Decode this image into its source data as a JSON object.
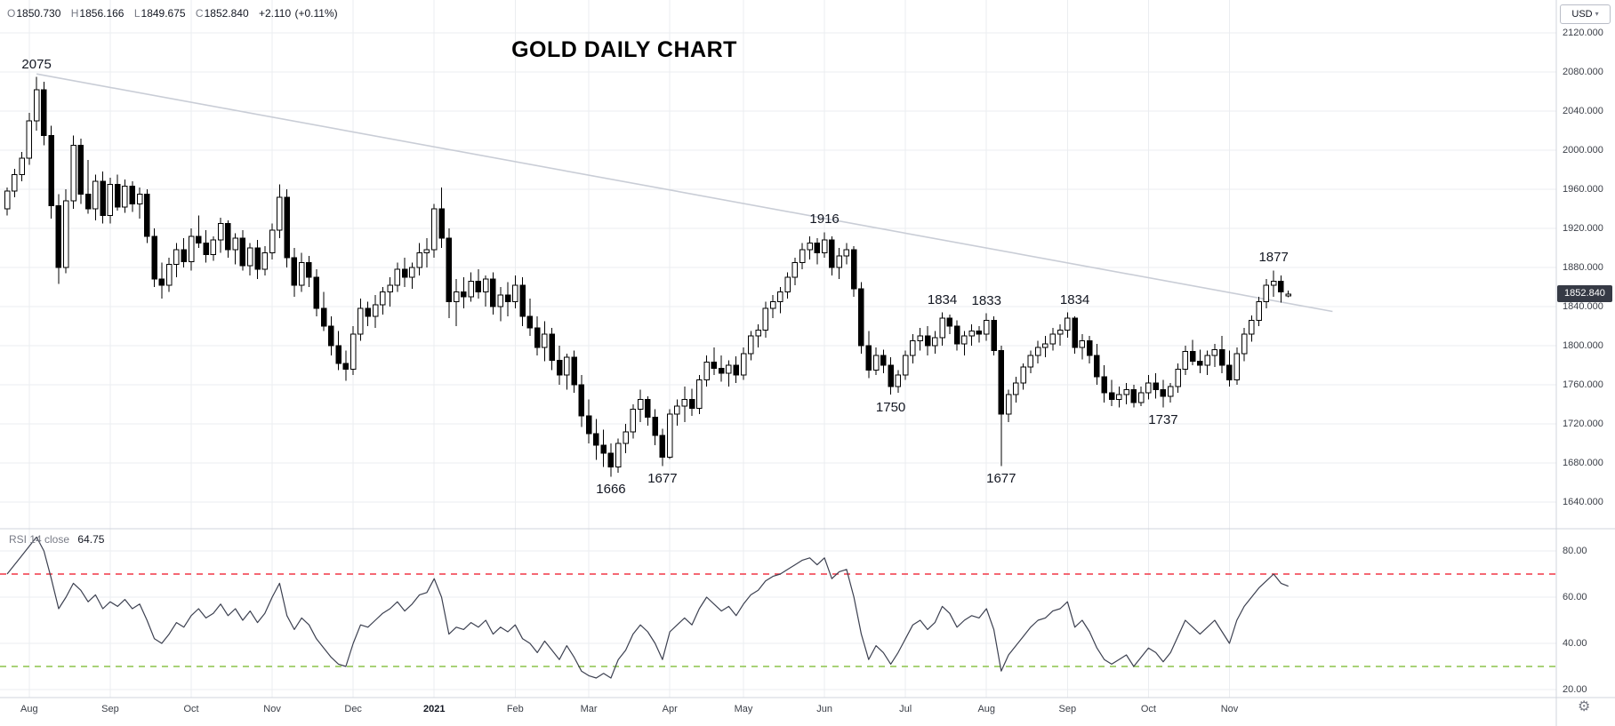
{
  "header": {
    "legend": {
      "open_label": "O",
      "open": "1850.730",
      "high_label": "H",
      "high": "1856.166",
      "low_label": "L",
      "low": "1849.675",
      "close_label": "C",
      "close": "1852.840",
      "change": "+2.110",
      "change_percent": "(+0.11%)"
    },
    "title": "GOLD DAILY CHART",
    "currency_selector": {
      "label": "USD"
    }
  },
  "icons": {
    "caret_down": "▾",
    "gear": "⚙"
  },
  "price_axis": {
    "ticks": [
      "2120.000",
      "2080.000",
      "2040.000",
      "2000.000",
      "1960.000",
      "1920.000",
      "1880.000",
      "1840.000",
      "1800.000",
      "1760.000",
      "1720.000",
      "1680.000",
      "1640.000"
    ],
    "last_price_badge": "1852.840"
  },
  "rsi_pane": {
    "indicator_label": "RSI 14 close",
    "value": "64.75",
    "ticks": [
      "80.00",
      "60.00",
      "40.00",
      "20.00"
    ]
  },
  "time_axis": {
    "labels": [
      {
        "text": "Aug",
        "index": 3
      },
      {
        "text": "Sep",
        "index": 14
      },
      {
        "text": "Oct",
        "index": 25
      },
      {
        "text": "Nov",
        "index": 36
      },
      {
        "text": "Dec",
        "index": 47
      },
      {
        "text": "2021",
        "index": 58,
        "bold": true
      },
      {
        "text": "Feb",
        "index": 69
      },
      {
        "text": "Mar",
        "index": 79
      },
      {
        "text": "Apr",
        "index": 90
      },
      {
        "text": "May",
        "index": 100
      },
      {
        "text": "Jun",
        "index": 111
      },
      {
        "text": "Jul",
        "index": 122
      },
      {
        "text": "Aug",
        "index": 133
      },
      {
        "text": "Sep",
        "index": 144
      },
      {
        "text": "Oct",
        "index": 155
      },
      {
        "text": "Nov",
        "index": 166
      }
    ]
  },
  "annotations": [
    {
      "text": "2075",
      "index": 4,
      "price": 2075,
      "placement": "above"
    },
    {
      "text": "1916",
      "index": 111,
      "price": 1916,
      "placement": "above"
    },
    {
      "text": "1877",
      "index": 172,
      "price": 1877,
      "placement": "above"
    },
    {
      "text": "1834",
      "index": 127,
      "price": 1834,
      "placement": "above"
    },
    {
      "text": "1833",
      "index": 133,
      "price": 1833,
      "placement": "above"
    },
    {
      "text": "1834",
      "index": 145,
      "price": 1834,
      "placement": "above"
    },
    {
      "text": "1750",
      "index": 120,
      "price": 1750,
      "placement": "below"
    },
    {
      "text": "1666",
      "index": 82,
      "price": 1666,
      "placement": "below"
    },
    {
      "text": "1677",
      "index": 89,
      "price": 1677,
      "placement": "below"
    },
    {
      "text": "1677",
      "index": 135,
      "price": 1677,
      "placement": "below"
    },
    {
      "text": "1737",
      "index": 157,
      "price": 1737,
      "placement": "below"
    }
  ],
  "chart_data": {
    "type": "candlestick",
    "title": "GOLD DAILY CHART",
    "currency": "USD",
    "candle_interval": "~2 trading days (approximation of the daily chart Aug 2020 - Nov 2021)",
    "price_range": [
      1620,
      2130
    ],
    "price_gridlines": [
      2120,
      2080,
      2040,
      2000,
      1960,
      1920,
      1880,
      1840,
      1800,
      1760,
      1720,
      1680,
      1640
    ],
    "last": {
      "open": 1850.73,
      "high": 1856.166,
      "low": 1849.675,
      "close": 1852.84,
      "change": 2.11,
      "change_percent": 0.11
    },
    "trendline": {
      "from_index": 4,
      "from_price": 2078,
      "to_index": 180,
      "to_price": 1835
    },
    "candles_ohlc": [
      [
        1940,
        1962,
        1933,
        1958
      ],
      [
        1958,
        1981,
        1952,
        1975
      ],
      [
        1975,
        1998,
        1968,
        1992
      ],
      [
        1992,
        2038,
        1985,
        2030
      ],
      [
        2030,
        2075,
        2020,
        2062
      ],
      [
        2062,
        2070,
        2005,
        2015
      ],
      [
        2015,
        2025,
        1930,
        1943
      ],
      [
        1943,
        1955,
        1863,
        1880
      ],
      [
        1880,
        1960,
        1874,
        1948
      ],
      [
        1948,
        2015,
        1940,
        2005
      ],
      [
        2005,
        2012,
        1945,
        1955
      ],
      [
        1955,
        1990,
        1935,
        1940
      ],
      [
        1940,
        1975,
        1928,
        1968
      ],
      [
        1968,
        1978,
        1925,
        1933
      ],
      [
        1933,
        1972,
        1925,
        1965
      ],
      [
        1965,
        1975,
        1938,
        1942
      ],
      [
        1942,
        1970,
        1936,
        1963
      ],
      [
        1963,
        1968,
        1937,
        1945
      ],
      [
        1945,
        1962,
        1930,
        1955
      ],
      [
        1955,
        1960,
        1905,
        1912
      ],
      [
        1912,
        1920,
        1860,
        1868
      ],
      [
        1868,
        1885,
        1848,
        1862
      ],
      [
        1862,
        1890,
        1855,
        1883
      ],
      [
        1883,
        1905,
        1870,
        1898
      ],
      [
        1898,
        1910,
        1880,
        1886
      ],
      [
        1886,
        1920,
        1877,
        1912
      ],
      [
        1912,
        1933,
        1900,
        1905
      ],
      [
        1905,
        1918,
        1885,
        1893
      ],
      [
        1893,
        1912,
        1887,
        1908
      ],
      [
        1908,
        1931,
        1895,
        1925
      ],
      [
        1925,
        1928,
        1890,
        1898
      ],
      [
        1898,
        1915,
        1883,
        1910
      ],
      [
        1910,
        1918,
        1877,
        1882
      ],
      [
        1882,
        1905,
        1872,
        1900
      ],
      [
        1900,
        1908,
        1868,
        1878
      ],
      [
        1878,
        1902,
        1872,
        1895
      ],
      [
        1895,
        1925,
        1888,
        1918
      ],
      [
        1918,
        1965,
        1910,
        1952
      ],
      [
        1952,
        1960,
        1880,
        1890
      ],
      [
        1890,
        1900,
        1850,
        1862
      ],
      [
        1862,
        1895,
        1855,
        1885
      ],
      [
        1885,
        1892,
        1860,
        1870
      ],
      [
        1870,
        1878,
        1830,
        1838
      ],
      [
        1838,
        1855,
        1815,
        1820
      ],
      [
        1820,
        1830,
        1790,
        1800
      ],
      [
        1800,
        1815,
        1775,
        1782
      ],
      [
        1782,
        1795,
        1764,
        1776
      ],
      [
        1776,
        1820,
        1770,
        1812
      ],
      [
        1812,
        1848,
        1805,
        1838
      ],
      [
        1838,
        1845,
        1820,
        1830
      ],
      [
        1830,
        1852,
        1818,
        1842
      ],
      [
        1842,
        1860,
        1832,
        1855
      ],
      [
        1855,
        1870,
        1840,
        1862
      ],
      [
        1862,
        1885,
        1855,
        1878
      ],
      [
        1878,
        1890,
        1860,
        1870
      ],
      [
        1870,
        1885,
        1858,
        1880
      ],
      [
        1880,
        1905,
        1872,
        1895
      ],
      [
        1895,
        1910,
        1880,
        1898
      ],
      [
        1898,
        1945,
        1890,
        1940
      ],
      [
        1940,
        1962,
        1900,
        1910
      ],
      [
        1910,
        1920,
        1828,
        1845
      ],
      [
        1845,
        1868,
        1820,
        1855
      ],
      [
        1855,
        1870,
        1838,
        1850
      ],
      [
        1850,
        1875,
        1845,
        1866
      ],
      [
        1866,
        1878,
        1848,
        1855
      ],
      [
        1855,
        1872,
        1840,
        1868
      ],
      [
        1868,
        1875,
        1832,
        1840
      ],
      [
        1840,
        1860,
        1825,
        1852
      ],
      [
        1852,
        1865,
        1830,
        1845
      ],
      [
        1845,
        1872,
        1838,
        1862
      ],
      [
        1862,
        1870,
        1820,
        1830
      ],
      [
        1830,
        1848,
        1810,
        1818
      ],
      [
        1818,
        1830,
        1790,
        1798
      ],
      [
        1798,
        1825,
        1784,
        1812
      ],
      [
        1812,
        1818,
        1775,
        1785
      ],
      [
        1785,
        1800,
        1760,
        1770
      ],
      [
        1770,
        1792,
        1755,
        1788
      ],
      [
        1788,
        1795,
        1752,
        1760
      ],
      [
        1760,
        1770,
        1717,
        1728
      ],
      [
        1728,
        1745,
        1700,
        1710
      ],
      [
        1710,
        1725,
        1683,
        1698
      ],
      [
        1698,
        1714,
        1676,
        1690
      ],
      [
        1690,
        1700,
        1666,
        1676
      ],
      [
        1676,
        1705,
        1670,
        1700
      ],
      [
        1700,
        1720,
        1690,
        1712
      ],
      [
        1712,
        1740,
        1705,
        1735
      ],
      [
        1735,
        1755,
        1722,
        1745
      ],
      [
        1745,
        1748,
        1718,
        1727
      ],
      [
        1727,
        1735,
        1698,
        1708
      ],
      [
        1708,
        1715,
        1677,
        1686
      ],
      [
        1686,
        1735,
        1684,
        1730
      ],
      [
        1730,
        1745,
        1718,
        1738
      ],
      [
        1738,
        1758,
        1722,
        1745
      ],
      [
        1745,
        1756,
        1728,
        1736
      ],
      [
        1736,
        1770,
        1730,
        1765
      ],
      [
        1765,
        1790,
        1758,
        1783
      ],
      [
        1783,
        1798,
        1770,
        1777
      ],
      [
        1777,
        1790,
        1763,
        1772
      ],
      [
        1772,
        1785,
        1758,
        1780
      ],
      [
        1780,
        1789,
        1762,
        1770
      ],
      [
        1770,
        1798,
        1765,
        1792
      ],
      [
        1792,
        1815,
        1785,
        1810
      ],
      [
        1810,
        1822,
        1798,
        1816
      ],
      [
        1816,
        1845,
        1808,
        1838
      ],
      [
        1838,
        1852,
        1828,
        1845
      ],
      [
        1845,
        1860,
        1833,
        1855
      ],
      [
        1855,
        1875,
        1848,
        1870
      ],
      [
        1870,
        1890,
        1862,
        1885
      ],
      [
        1885,
        1905,
        1878,
        1898
      ],
      [
        1898,
        1912,
        1888,
        1905
      ],
      [
        1905,
        1910,
        1883,
        1895
      ],
      [
        1895,
        1916,
        1890,
        1908
      ],
      [
        1908,
        1912,
        1872,
        1880
      ],
      [
        1880,
        1900,
        1868,
        1892
      ],
      [
        1892,
        1905,
        1883,
        1898
      ],
      [
        1898,
        1902,
        1850,
        1858
      ],
      [
        1858,
        1865,
        1792,
        1800
      ],
      [
        1800,
        1815,
        1767,
        1775
      ],
      [
        1775,
        1798,
        1770,
        1790
      ],
      [
        1790,
        1796,
        1772,
        1780
      ],
      [
        1780,
        1788,
        1750,
        1758
      ],
      [
        1758,
        1775,
        1752,
        1770
      ],
      [
        1770,
        1795,
        1765,
        1790
      ],
      [
        1790,
        1812,
        1782,
        1805
      ],
      [
        1805,
        1818,
        1795,
        1810
      ],
      [
        1810,
        1820,
        1790,
        1800
      ],
      [
        1800,
        1815,
        1792,
        1808
      ],
      [
        1808,
        1834,
        1800,
        1828
      ],
      [
        1828,
        1832,
        1812,
        1820
      ],
      [
        1820,
        1826,
        1795,
        1802
      ],
      [
        1802,
        1815,
        1790,
        1810
      ],
      [
        1810,
        1822,
        1800,
        1815
      ],
      [
        1815,
        1820,
        1803,
        1812
      ],
      [
        1812,
        1833,
        1805,
        1826
      ],
      [
        1826,
        1830,
        1790,
        1795
      ],
      [
        1795,
        1800,
        1677,
        1730
      ],
      [
        1730,
        1755,
        1722,
        1750
      ],
      [
        1750,
        1768,
        1742,
        1762
      ],
      [
        1762,
        1782,
        1755,
        1778
      ],
      [
        1778,
        1795,
        1772,
        1790
      ],
      [
        1790,
        1805,
        1782,
        1798
      ],
      [
        1798,
        1810,
        1788,
        1802
      ],
      [
        1802,
        1818,
        1795,
        1812
      ],
      [
        1812,
        1822,
        1800,
        1816
      ],
      [
        1816,
        1834,
        1808,
        1828
      ],
      [
        1828,
        1830,
        1792,
        1798
      ],
      [
        1798,
        1812,
        1786,
        1805
      ],
      [
        1805,
        1810,
        1782,
        1790
      ],
      [
        1790,
        1802,
        1760,
        1768
      ],
      [
        1768,
        1780,
        1742,
        1752
      ],
      [
        1752,
        1765,
        1738,
        1745
      ],
      [
        1745,
        1758,
        1737,
        1750
      ],
      [
        1750,
        1762,
        1740,
        1755
      ],
      [
        1755,
        1760,
        1737,
        1742
      ],
      [
        1742,
        1758,
        1738,
        1752
      ],
      [
        1752,
        1770,
        1745,
        1762
      ],
      [
        1762,
        1772,
        1746,
        1755
      ],
      [
        1755,
        1765,
        1737,
        1748
      ],
      [
        1748,
        1762,
        1742,
        1758
      ],
      [
        1758,
        1782,
        1752,
        1776
      ],
      [
        1776,
        1800,
        1770,
        1794
      ],
      [
        1794,
        1806,
        1780,
        1784
      ],
      [
        1784,
        1796,
        1772,
        1780
      ],
      [
        1780,
        1795,
        1770,
        1790
      ],
      [
        1790,
        1802,
        1778,
        1796
      ],
      [
        1796,
        1810,
        1772,
        1780
      ],
      [
        1780,
        1795,
        1758,
        1765
      ],
      [
        1765,
        1798,
        1760,
        1792
      ],
      [
        1792,
        1818,
        1784,
        1812
      ],
      [
        1812,
        1831,
        1804,
        1826
      ],
      [
        1826,
        1850,
        1820,
        1845
      ],
      [
        1845,
        1868,
        1838,
        1862
      ],
      [
        1862,
        1877,
        1850,
        1866
      ],
      [
        1866,
        1872,
        1844,
        1855
      ],
      [
        1850.73,
        1856.166,
        1849.675,
        1852.84
      ]
    ],
    "rsi": {
      "label": "RSI 14 close",
      "current": 64.75,
      "overbought": 70,
      "oversold": 30,
      "range": [
        15,
        90
      ],
      "values": [
        70,
        74,
        78,
        82,
        86,
        80,
        68,
        55,
        60,
        66,
        63,
        58,
        61,
        55,
        58,
        56,
        59,
        55,
        57,
        50,
        42,
        40,
        44,
        49,
        47,
        52,
        55,
        51,
        53,
        57,
        52,
        55,
        50,
        54,
        49,
        53,
        60,
        66,
        52,
        46,
        51,
        48,
        42,
        38,
        34,
        31,
        30,
        40,
        48,
        47,
        50,
        53,
        55,
        58,
        54,
        57,
        61,
        62,
        68,
        60,
        44,
        47,
        46,
        49,
        47,
        50,
        44,
        47,
        45,
        48,
        42,
        40,
        36,
        41,
        37,
        33,
        39,
        34,
        28,
        26,
        25,
        27,
        25,
        33,
        37,
        44,
        48,
        45,
        40,
        33,
        45,
        48,
        51,
        48,
        55,
        60,
        57,
        54,
        56,
        52,
        57,
        61,
        63,
        67,
        69,
        70,
        72,
        74,
        76,
        77,
        74,
        77,
        68,
        71,
        72,
        60,
        44,
        33,
        39,
        36,
        31,
        36,
        42,
        48,
        50,
        46,
        49,
        56,
        53,
        47,
        50,
        52,
        51,
        55,
        46,
        28,
        35,
        39,
        43,
        47,
        50,
        51,
        54,
        55,
        58,
        47,
        50,
        45,
        38,
        33,
        31,
        33,
        35,
        30,
        34,
        38,
        36,
        32,
        36,
        43,
        50,
        47,
        44,
        47,
        50,
        45,
        40,
        50,
        56,
        60,
        64,
        67,
        70,
        66,
        64.75
      ]
    },
    "colors": {
      "up_fill": "#ffffff",
      "down_fill": "#000000",
      "outline": "#000000",
      "trendline": "#c9cdd6",
      "grid": "#ebedf0",
      "separator": "#d1d4dc",
      "rsi_line": "#3c4050",
      "overbought_line": "#f23645",
      "oversold_line": "#8bc34a",
      "badge_bg": "#363a45",
      "badge_text": "#ffffff"
    }
  }
}
